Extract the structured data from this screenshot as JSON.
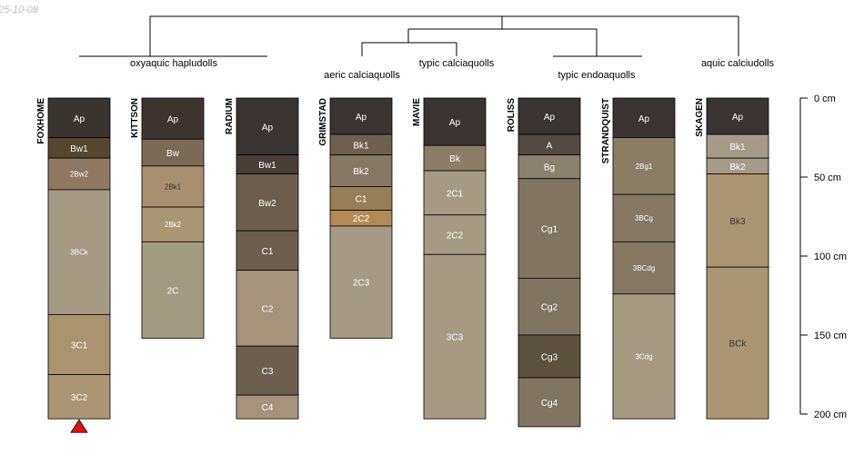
{
  "corner_text": "25-10-08",
  "chart_data": {
    "type": "soil-profile-sketch",
    "depth_unit": "cm",
    "max_depth": 200,
    "depth_ticks": [
      {
        "value": 0,
        "label": "0 cm"
      },
      {
        "value": 50,
        "label": "50 cm"
      },
      {
        "value": 100,
        "label": "100 cm"
      },
      {
        "value": 150,
        "label": "150 cm"
      },
      {
        "value": 200,
        "label": "200 cm"
      }
    ],
    "subgroups": [
      "oxyaquic hapludolls",
      "aeric calciaquolls",
      "typic calciaquolls",
      "typic endoaquolls",
      "aquic calciudolls"
    ],
    "profiles": [
      {
        "name": "FOXHOME",
        "subgroup": "oxyaquic hapludolls",
        "marker": true,
        "horizons": [
          {
            "name": "Ap",
            "top": 0,
            "bottom": 25,
            "color": "#3a3431",
            "text": "#ffffff"
          },
          {
            "name": "Bw1",
            "top": 25,
            "bottom": 38,
            "color": "#55462f",
            "text": "#ffffff"
          },
          {
            "name": "2Bw2",
            "top": 38,
            "bottom": 58,
            "color": "#8d7a61",
            "text": "#ffffff"
          },
          {
            "name": "3BCk",
            "top": 58,
            "bottom": 137,
            "color": "#a59a84",
            "text": "#ffffff"
          },
          {
            "name": "3C1",
            "top": 137,
            "bottom": 175,
            "color": "#a8946d",
            "text": "#ffffff"
          },
          {
            "name": "3C2",
            "top": 175,
            "bottom": 203,
            "color": "#aa9673",
            "text": "#ffffff"
          }
        ]
      },
      {
        "name": "KITTSON",
        "subgroup": "oxyaquic hapludolls",
        "marker": false,
        "horizons": [
          {
            "name": "Ap",
            "top": 0,
            "bottom": 26,
            "color": "#3d3430",
            "text": "#ffffff"
          },
          {
            "name": "Bw",
            "top": 26,
            "bottom": 43,
            "color": "#7a6b57",
            "text": "#ffffff"
          },
          {
            "name": "2Bk1",
            "top": 43,
            "bottom": 69,
            "color": "#a6906e",
            "text": "#333333"
          },
          {
            "name": "2Bk2",
            "top": 69,
            "bottom": 91,
            "color": "#a99773",
            "text": "#ffffff"
          },
          {
            "name": "2C",
            "top": 91,
            "bottom": 152,
            "color": "#a19b84",
            "text": "#ffffff"
          }
        ]
      },
      {
        "name": "RADIUM",
        "subgroup": "oxyaquic hapludolls",
        "marker": false,
        "horizons": [
          {
            "name": "Ap",
            "top": 0,
            "bottom": 36,
            "color": "#3a3432",
            "text": "#ffffff"
          },
          {
            "name": "Bw1",
            "top": 36,
            "bottom": 48,
            "color": "#4a3f37",
            "text": "#ffffff"
          },
          {
            "name": "Bw2",
            "top": 48,
            "bottom": 84,
            "color": "#6b5e4f",
            "text": "#ffffff"
          },
          {
            "name": "C1",
            "top": 84,
            "bottom": 109,
            "color": "#6c5f50",
            "text": "#ffffff"
          },
          {
            "name": "C2",
            "top": 109,
            "bottom": 157,
            "color": "#a5947b",
            "text": "#ffffff"
          },
          {
            "name": "C3",
            "top": 157,
            "bottom": 188,
            "color": "#6c5f50",
            "text": "#ffffff"
          },
          {
            "name": "C4",
            "top": 188,
            "bottom": 203,
            "color": "#a5947b",
            "text": "#ffffff"
          }
        ]
      },
      {
        "name": "GRIMSTAD",
        "subgroup": "aeric calciaquolls",
        "marker": false,
        "horizons": [
          {
            "name": "Ap",
            "top": 0,
            "bottom": 23,
            "color": "#3a3432",
            "text": "#ffffff"
          },
          {
            "name": "Bk1",
            "top": 23,
            "bottom": 36,
            "color": "#6f604e",
            "text": "#ffffff"
          },
          {
            "name": "Bk2",
            "top": 36,
            "bottom": 56,
            "color": "#857966",
            "text": "#ffffff"
          },
          {
            "name": "C1",
            "top": 56,
            "bottom": 71,
            "color": "#967f56",
            "text": "#ffffff"
          },
          {
            "name": "2C2",
            "top": 71,
            "bottom": 81,
            "color": "#b38a56",
            "text": "#ffffff"
          },
          {
            "name": "2C3",
            "top": 81,
            "bottom": 152,
            "color": "#a49a85",
            "text": "#ffffff"
          }
        ]
      },
      {
        "name": "MAVIE",
        "subgroup": "typic calciaquolls",
        "marker": false,
        "horizons": [
          {
            "name": "Ap",
            "top": 0,
            "bottom": 30,
            "color": "#3a3432",
            "text": "#ffffff"
          },
          {
            "name": "Bk",
            "top": 30,
            "bottom": 46,
            "color": "#8c7d66",
            "text": "#ffffff"
          },
          {
            "name": "2C1",
            "top": 46,
            "bottom": 74,
            "color": "#a59a84",
            "text": "#ffffff"
          },
          {
            "name": "2C2",
            "top": 74,
            "bottom": 99,
            "color": "#a59a84",
            "text": "#ffffff"
          },
          {
            "name": "3C3",
            "top": 99,
            "bottom": 203,
            "color": "#a59a84",
            "text": "#ffffff"
          }
        ]
      },
      {
        "name": "ROLISS",
        "subgroup": "typic endoaquolls",
        "marker": false,
        "horizons": [
          {
            "name": "Ap",
            "top": 0,
            "bottom": 23,
            "color": "#3a3432",
            "text": "#ffffff"
          },
          {
            "name": "A",
            "top": 23,
            "bottom": 36,
            "color": "#534a41",
            "text": "#ffffff"
          },
          {
            "name": "Bg",
            "top": 36,
            "bottom": 51,
            "color": "#8a806e",
            "text": "#ffffff"
          },
          {
            "name": "Cg1",
            "top": 51,
            "bottom": 114,
            "color": "#807562",
            "text": "#ffffff"
          },
          {
            "name": "Cg2",
            "top": 114,
            "bottom": 150,
            "color": "#807562",
            "text": "#ffffff"
          },
          {
            "name": "Cg3",
            "top": 150,
            "bottom": 177,
            "color": "#5c523f",
            "text": "#ffffff"
          },
          {
            "name": "Cg4",
            "top": 177,
            "bottom": 208,
            "color": "#807562",
            "text": "#ffffff"
          }
        ]
      },
      {
        "name": "STRANDQUIST",
        "subgroup": "typic endoaquolls",
        "marker": false,
        "horizons": [
          {
            "name": "Ap",
            "top": 0,
            "bottom": 25,
            "color": "#3a3432",
            "text": "#ffffff"
          },
          {
            "name": "2Bg1",
            "top": 25,
            "bottom": 61,
            "color": "#8a7d66",
            "text": "#ffffff"
          },
          {
            "name": "3BCg",
            "top": 61,
            "bottom": 91,
            "color": "#857966",
            "text": "#ffffff"
          },
          {
            "name": "3BCdg",
            "top": 91,
            "bottom": 124,
            "color": "#857966",
            "text": "#ffffff"
          },
          {
            "name": "3Cdg",
            "top": 124,
            "bottom": 203,
            "color": "#a59a84",
            "text": "#ffffff"
          }
        ]
      },
      {
        "name": "SKAGEN",
        "subgroup": "aquic calciudolls",
        "marker": false,
        "horizons": [
          {
            "name": "Ap",
            "top": 0,
            "bottom": 23,
            "color": "#3a3432",
            "text": "#ffffff"
          },
          {
            "name": "Bk1",
            "top": 23,
            "bottom": 38,
            "color": "#a69a88",
            "text": "#ffffff"
          },
          {
            "name": "Bk2",
            "top": 38,
            "bottom": 48,
            "color": "#a69a88",
            "text": "#ffffff"
          },
          {
            "name": "Bk3",
            "top": 48,
            "bottom": 107,
            "color": "#aa9670",
            "text": "#333333"
          },
          {
            "name": "BCk",
            "top": 107,
            "bottom": 203,
            "color": "#aa9670",
            "text": "#333333"
          }
        ]
      }
    ]
  }
}
